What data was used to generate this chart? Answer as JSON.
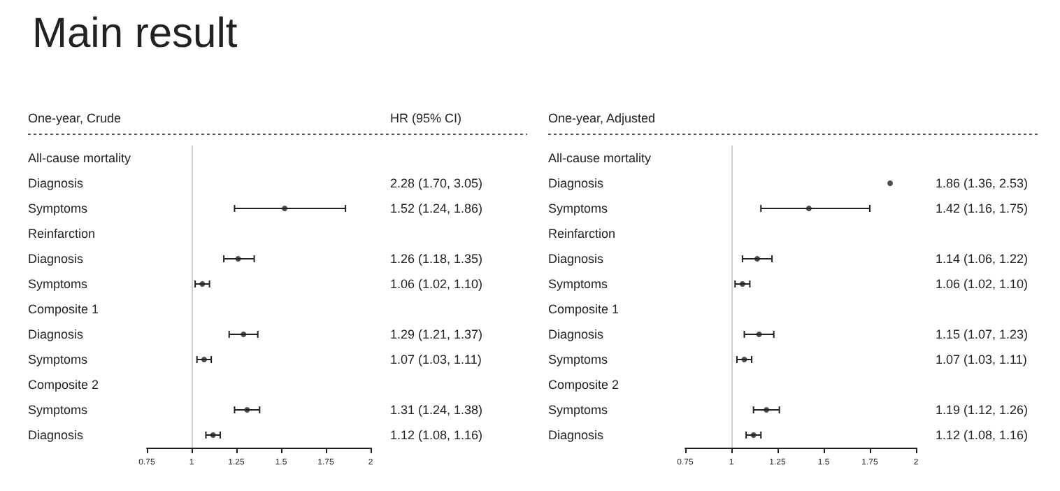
{
  "chart_data": [
    {
      "type": "scatter",
      "title": "Main result",
      "subtitle": "One-year, Crude",
      "orientation": "horizontal",
      "marker": "circle",
      "annotations": [
        "HR (95% CI)"
      ],
      "categories": [
        "All-cause mortality",
        "Diagnosis",
        "Symptoms",
        "Reinfarction",
        "Diagnosis",
        "Symptoms",
        "Composite 1",
        "Diagnosis",
        "Symptoms",
        "Composite 2",
        "Symptoms",
        "Diagnosis"
      ],
      "series": [
        {
          "color": "#222222",
          "values": [
            null,
            null,
            1.52,
            null,
            1.26,
            1.06,
            null,
            1.29,
            1.07,
            null,
            1.31,
            1.12
          ],
          "errors": [
            null,
            null,
            [
              1.24,
              1.86
            ],
            null,
            [
              1.18,
              1.35
            ],
            [
              1.02,
              1.1
            ],
            null,
            [
              1.21,
              1.37
            ],
            [
              1.03,
              1.11
            ],
            null,
            [
              1.24,
              1.38
            ],
            [
              1.08,
              1.16
            ]
          ],
          "value_labels": [
            null,
            "2.28 (1.70, 3.05)",
            "1.52 (1.24, 1.86)",
            null,
            "1.26 (1.18, 1.35)",
            "1.06 (1.02, 1.10)",
            null,
            "1.29 (1.21, 1.37)",
            "1.07 (1.03, 1.11)",
            null,
            "1.31 (1.24, 1.38)",
            "1.12 (1.08, 1.16)"
          ]
        }
      ],
      "xlim": [
        0.75,
        2
      ],
      "xticks": [
        0.75,
        1,
        1.25,
        1.5,
        1.75,
        2
      ],
      "ref_lines": [
        {
          "axis": "x",
          "value": 1,
          "color": "#d0d0d0"
        }
      ]
    },
    {
      "type": "scatter",
      "subtitle": "One-year, Adjusted",
      "orientation": "horizontal",
      "marker": "circle",
      "categories": [
        "All-cause mortality",
        "Diagnosis",
        "Symptoms",
        "Reinfarction",
        "Diagnosis",
        "Symptoms",
        "Composite 1",
        "Diagnosis",
        "Symptoms",
        "Composite 2",
        "Symptoms",
        "Diagnosis"
      ],
      "series": [
        {
          "color": "#222222",
          "values": [
            null,
            1.86,
            1.42,
            null,
            1.14,
            1.06,
            null,
            1.15,
            1.07,
            null,
            1.19,
            1.12
          ],
          "errors": [
            null,
            null,
            [
              1.16,
              1.75
            ],
            null,
            [
              1.06,
              1.22
            ],
            [
              1.02,
              1.1
            ],
            null,
            [
              1.07,
              1.23
            ],
            [
              1.03,
              1.11
            ],
            null,
            [
              1.12,
              1.26
            ],
            [
              1.08,
              1.16
            ]
          ],
          "value_labels": [
            null,
            "1.86 (1.36, 2.53)",
            "1.42 (1.16, 1.75)",
            null,
            "1.14 (1.06, 1.22)",
            "1.06 (1.02, 1.10)",
            null,
            "1.15 (1.07, 1.23)",
            "1.07 (1.03, 1.11)",
            null,
            "1.19 (1.12, 1.26)",
            "1.12 (1.08, 1.16)"
          ]
        }
      ],
      "xlim": [
        0.75,
        2
      ],
      "xticks": [
        0.75,
        1,
        1.25,
        1.5,
        1.75,
        2
      ],
      "ref_lines": [
        {
          "axis": "x",
          "value": 1,
          "color": "#d0d0d0"
        }
      ]
    }
  ]
}
